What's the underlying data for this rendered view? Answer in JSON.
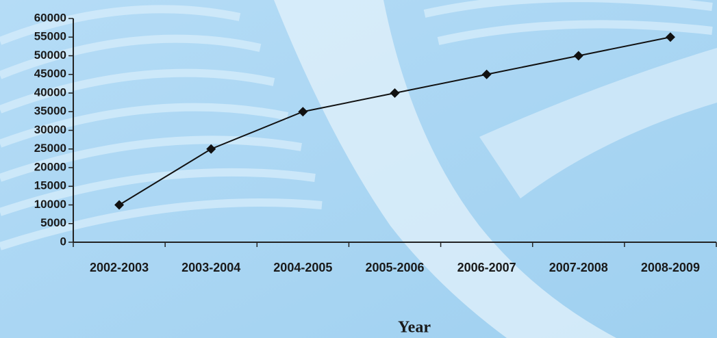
{
  "chart_data": {
    "type": "line",
    "x_label": "Year",
    "categories": [
      "2002-2003",
      "2003-2004",
      "2004-2005",
      "2005-2006",
      "2006-2007",
      "2007-2008",
      "2008-2009"
    ],
    "values": [
      10000,
      25000,
      35000,
      40000,
      45000,
      50000,
      55000
    ],
    "color": "#111111",
    "ylim": [
      0,
      60000
    ],
    "yticks": [
      0,
      5000,
      10000,
      15000,
      20000,
      25000,
      30000,
      35000,
      40000,
      45000,
      50000,
      55000,
      60000
    ]
  }
}
